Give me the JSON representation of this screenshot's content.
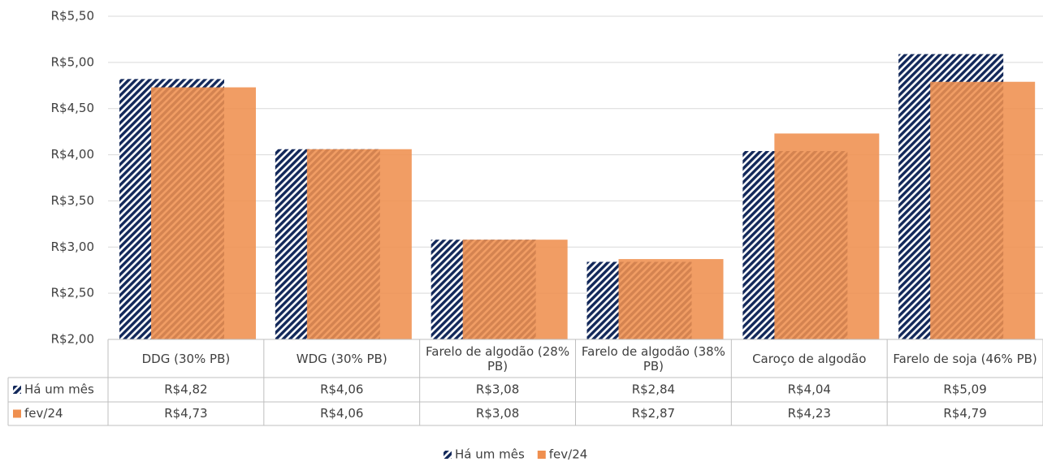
{
  "chart_data": {
    "type": "bar",
    "categories": [
      "DDG (30% PB)",
      "WDG (30% PB)",
      "Farelo de algodão (28% PB)",
      "Farelo de algodão (38% PB)",
      "Caroço de algodão",
      "Farelo de soja (46% PB)"
    ],
    "series": [
      {
        "name": "Há um mês",
        "color": "#12285a",
        "values": [
          4.82,
          4.06,
          3.08,
          2.84,
          4.04,
          5.09
        ],
        "value_labels": [
          "R$4,82",
          "R$4,06",
          "R$3,08",
          "R$2,84",
          "R$4,04",
          "R$5,09"
        ]
      },
      {
        "name": "fev/24",
        "color": "#ef8f4f",
        "values": [
          4.73,
          4.06,
          3.08,
          2.87,
          4.23,
          4.79
        ],
        "value_labels": [
          "R$4,73",
          "R$4,06",
          "R$3,08",
          "R$2,87",
          "R$4,23",
          "R$4,79"
        ]
      }
    ],
    "ylim": [
      2.0,
      5.5
    ],
    "yticks": [
      {
        "value": 2.0,
        "label": "R$2,00"
      },
      {
        "value": 2.5,
        "label": "R$2,50"
      },
      {
        "value": 3.0,
        "label": "R$3,00"
      },
      {
        "value": 3.5,
        "label": "R$3,50"
      },
      {
        "value": 4.0,
        "label": "R$4,00"
      },
      {
        "value": 4.5,
        "label": "R$4,50"
      },
      {
        "value": 5.0,
        "label": "R$5,00"
      },
      {
        "value": 5.5,
        "label": "R$5,50"
      }
    ],
    "grid": true,
    "legend": "bottom"
  }
}
